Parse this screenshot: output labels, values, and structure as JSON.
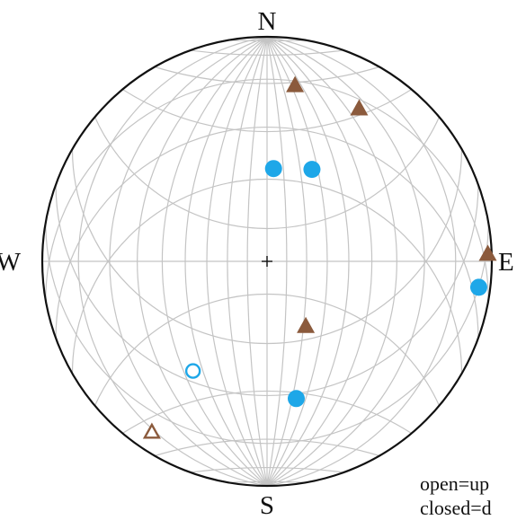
{
  "labels": {
    "north": "N",
    "south": "S",
    "east": "E",
    "west": "W",
    "legend_open": "open=up",
    "legend_closed": "closed=d"
  },
  "colors": {
    "circle_marker": "#1ea7e8",
    "triangle_marker": "#8b5a3c",
    "grid": "#c4c4c4",
    "primitive": "#111111"
  },
  "grid": {
    "type": "equal-angle (Wulff) net",
    "interval_deg": 10
  },
  "points": [
    {
      "symbol": "triangle",
      "fill": "closed",
      "trend": 9,
      "plunge": 13
    },
    {
      "symbol": "triangle",
      "fill": "closed",
      "trend": 31,
      "plunge": 13
    },
    {
      "symbol": "circle",
      "fill": "closed",
      "trend": 4,
      "plunge": 45
    },
    {
      "symbol": "circle",
      "fill": "closed",
      "trend": 26,
      "plunge": 41
    },
    {
      "symbol": "triangle",
      "fill": "closed",
      "trend": 88,
      "plunge": 1
    },
    {
      "symbol": "circle",
      "fill": "closed",
      "trend": 97,
      "plunge": 3
    },
    {
      "symbol": "triangle",
      "fill": "closed",
      "trend": 149,
      "plunge": 53
    },
    {
      "symbol": "circle",
      "fill": "open",
      "trend": 214,
      "plunge": 29
    },
    {
      "symbol": "circle",
      "fill": "closed",
      "trend": 168,
      "plunge": 26
    },
    {
      "symbol": "triangle",
      "fill": "open",
      "trend": 214,
      "plunge": 5
    }
  ]
}
